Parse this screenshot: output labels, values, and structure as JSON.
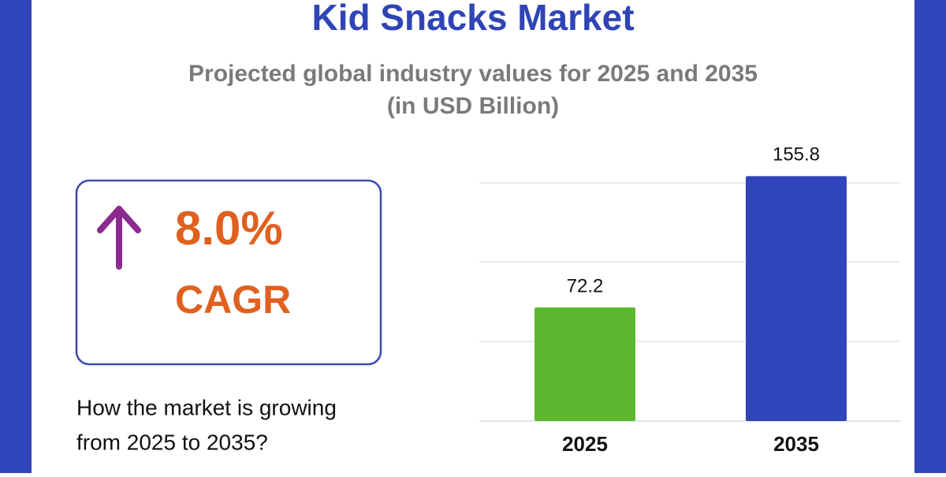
{
  "chart_data": {
    "type": "bar",
    "title": "Kid Snacks Market",
    "subtitle": [
      "Projected global industry values for 2025 and 2035",
      "(in USD Billion)"
    ],
    "categories": [
      "2025",
      "2035"
    ],
    "values": [
      72.2,
      155.8
    ],
    "colors": [
      "#5cb82e",
      "#3045b9"
    ],
    "ylim": [
      0,
      160
    ]
  },
  "cagr_box": {
    "value": "8.0%",
    "label": "CAGR"
  },
  "question": [
    "How the market is growing",
    "from 2025 to 2035?"
  ]
}
